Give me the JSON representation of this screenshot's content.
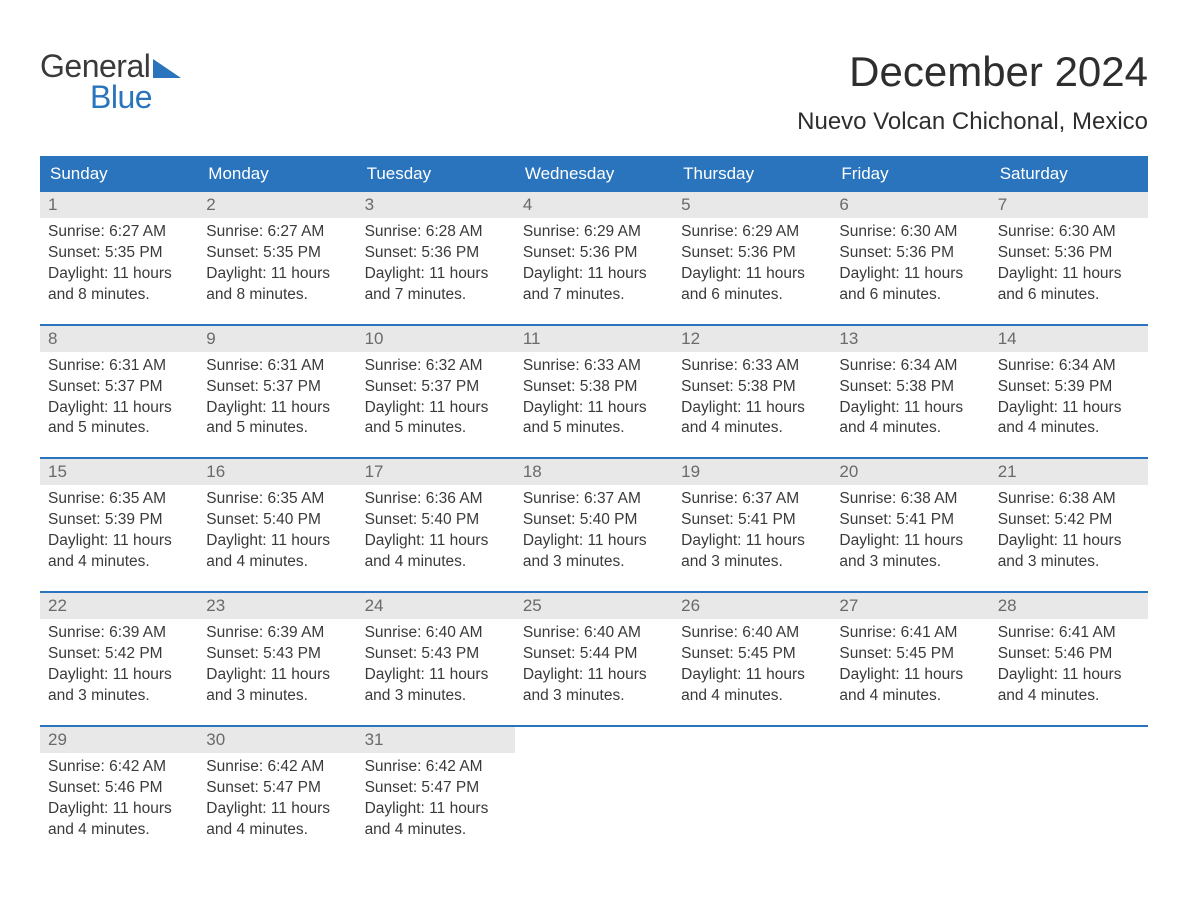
{
  "logo": {
    "word1": "General",
    "word2": "Blue",
    "color_dark": "#3a3a3a",
    "color_blue": "#2a74bd"
  },
  "title": "December 2024",
  "location": "Nuevo Volcan Chichonal, Mexico",
  "colors": {
    "header_bg": "#2a74bd",
    "header_text": "#ffffff",
    "daynum_bg": "#e8e8e8",
    "daynum_text": "#6a6a6a",
    "body_text": "#3a3a3a",
    "week_border": "#2a74bd",
    "page_bg": "#ffffff"
  },
  "layout": {
    "columns": 7,
    "rows": 5,
    "header_fontsize": 17,
    "daynum_fontsize": 17,
    "body_fontsize": 15.5
  },
  "weekdays": [
    "Sunday",
    "Monday",
    "Tuesday",
    "Wednesday",
    "Thursday",
    "Friday",
    "Saturday"
  ],
  "days": [
    {
      "n": "1",
      "sunrise": "6:27 AM",
      "sunset": "5:35 PM",
      "h": "11",
      "m": "8"
    },
    {
      "n": "2",
      "sunrise": "6:27 AM",
      "sunset": "5:35 PM",
      "h": "11",
      "m": "8"
    },
    {
      "n": "3",
      "sunrise": "6:28 AM",
      "sunset": "5:36 PM",
      "h": "11",
      "m": "7"
    },
    {
      "n": "4",
      "sunrise": "6:29 AM",
      "sunset": "5:36 PM",
      "h": "11",
      "m": "7"
    },
    {
      "n": "5",
      "sunrise": "6:29 AM",
      "sunset": "5:36 PM",
      "h": "11",
      "m": "6"
    },
    {
      "n": "6",
      "sunrise": "6:30 AM",
      "sunset": "5:36 PM",
      "h": "11",
      "m": "6"
    },
    {
      "n": "7",
      "sunrise": "6:30 AM",
      "sunset": "5:36 PM",
      "h": "11",
      "m": "6"
    },
    {
      "n": "8",
      "sunrise": "6:31 AM",
      "sunset": "5:37 PM",
      "h": "11",
      "m": "5"
    },
    {
      "n": "9",
      "sunrise": "6:31 AM",
      "sunset": "5:37 PM",
      "h": "11",
      "m": "5"
    },
    {
      "n": "10",
      "sunrise": "6:32 AM",
      "sunset": "5:37 PM",
      "h": "11",
      "m": "5"
    },
    {
      "n": "11",
      "sunrise": "6:33 AM",
      "sunset": "5:38 PM",
      "h": "11",
      "m": "5"
    },
    {
      "n": "12",
      "sunrise": "6:33 AM",
      "sunset": "5:38 PM",
      "h": "11",
      "m": "4"
    },
    {
      "n": "13",
      "sunrise": "6:34 AM",
      "sunset": "5:38 PM",
      "h": "11",
      "m": "4"
    },
    {
      "n": "14",
      "sunrise": "6:34 AM",
      "sunset": "5:39 PM",
      "h": "11",
      "m": "4"
    },
    {
      "n": "15",
      "sunrise": "6:35 AM",
      "sunset": "5:39 PM",
      "h": "11",
      "m": "4"
    },
    {
      "n": "16",
      "sunrise": "6:35 AM",
      "sunset": "5:40 PM",
      "h": "11",
      "m": "4"
    },
    {
      "n": "17",
      "sunrise": "6:36 AM",
      "sunset": "5:40 PM",
      "h": "11",
      "m": "4"
    },
    {
      "n": "18",
      "sunrise": "6:37 AM",
      "sunset": "5:40 PM",
      "h": "11",
      "m": "3"
    },
    {
      "n": "19",
      "sunrise": "6:37 AM",
      "sunset": "5:41 PM",
      "h": "11",
      "m": "3"
    },
    {
      "n": "20",
      "sunrise": "6:38 AM",
      "sunset": "5:41 PM",
      "h": "11",
      "m": "3"
    },
    {
      "n": "21",
      "sunrise": "6:38 AM",
      "sunset": "5:42 PM",
      "h": "11",
      "m": "3"
    },
    {
      "n": "22",
      "sunrise": "6:39 AM",
      "sunset": "5:42 PM",
      "h": "11",
      "m": "3"
    },
    {
      "n": "23",
      "sunrise": "6:39 AM",
      "sunset": "5:43 PM",
      "h": "11",
      "m": "3"
    },
    {
      "n": "24",
      "sunrise": "6:40 AM",
      "sunset": "5:43 PM",
      "h": "11",
      "m": "3"
    },
    {
      "n": "25",
      "sunrise": "6:40 AM",
      "sunset": "5:44 PM",
      "h": "11",
      "m": "3"
    },
    {
      "n": "26",
      "sunrise": "6:40 AM",
      "sunset": "5:45 PM",
      "h": "11",
      "m": "4"
    },
    {
      "n": "27",
      "sunrise": "6:41 AM",
      "sunset": "5:45 PM",
      "h": "11",
      "m": "4"
    },
    {
      "n": "28",
      "sunrise": "6:41 AM",
      "sunset": "5:46 PM",
      "h": "11",
      "m": "4"
    },
    {
      "n": "29",
      "sunrise": "6:42 AM",
      "sunset": "5:46 PM",
      "h": "11",
      "m": "4"
    },
    {
      "n": "30",
      "sunrise": "6:42 AM",
      "sunset": "5:47 PM",
      "h": "11",
      "m": "4"
    },
    {
      "n": "31",
      "sunrise": "6:42 AM",
      "sunset": "5:47 PM",
      "h": "11",
      "m": "4"
    }
  ],
  "labels": {
    "sunrise": "Sunrise: ",
    "sunset": "Sunset: ",
    "daylight1": "Daylight: ",
    "daylight2": " hours and ",
    "daylight3": " minutes."
  }
}
